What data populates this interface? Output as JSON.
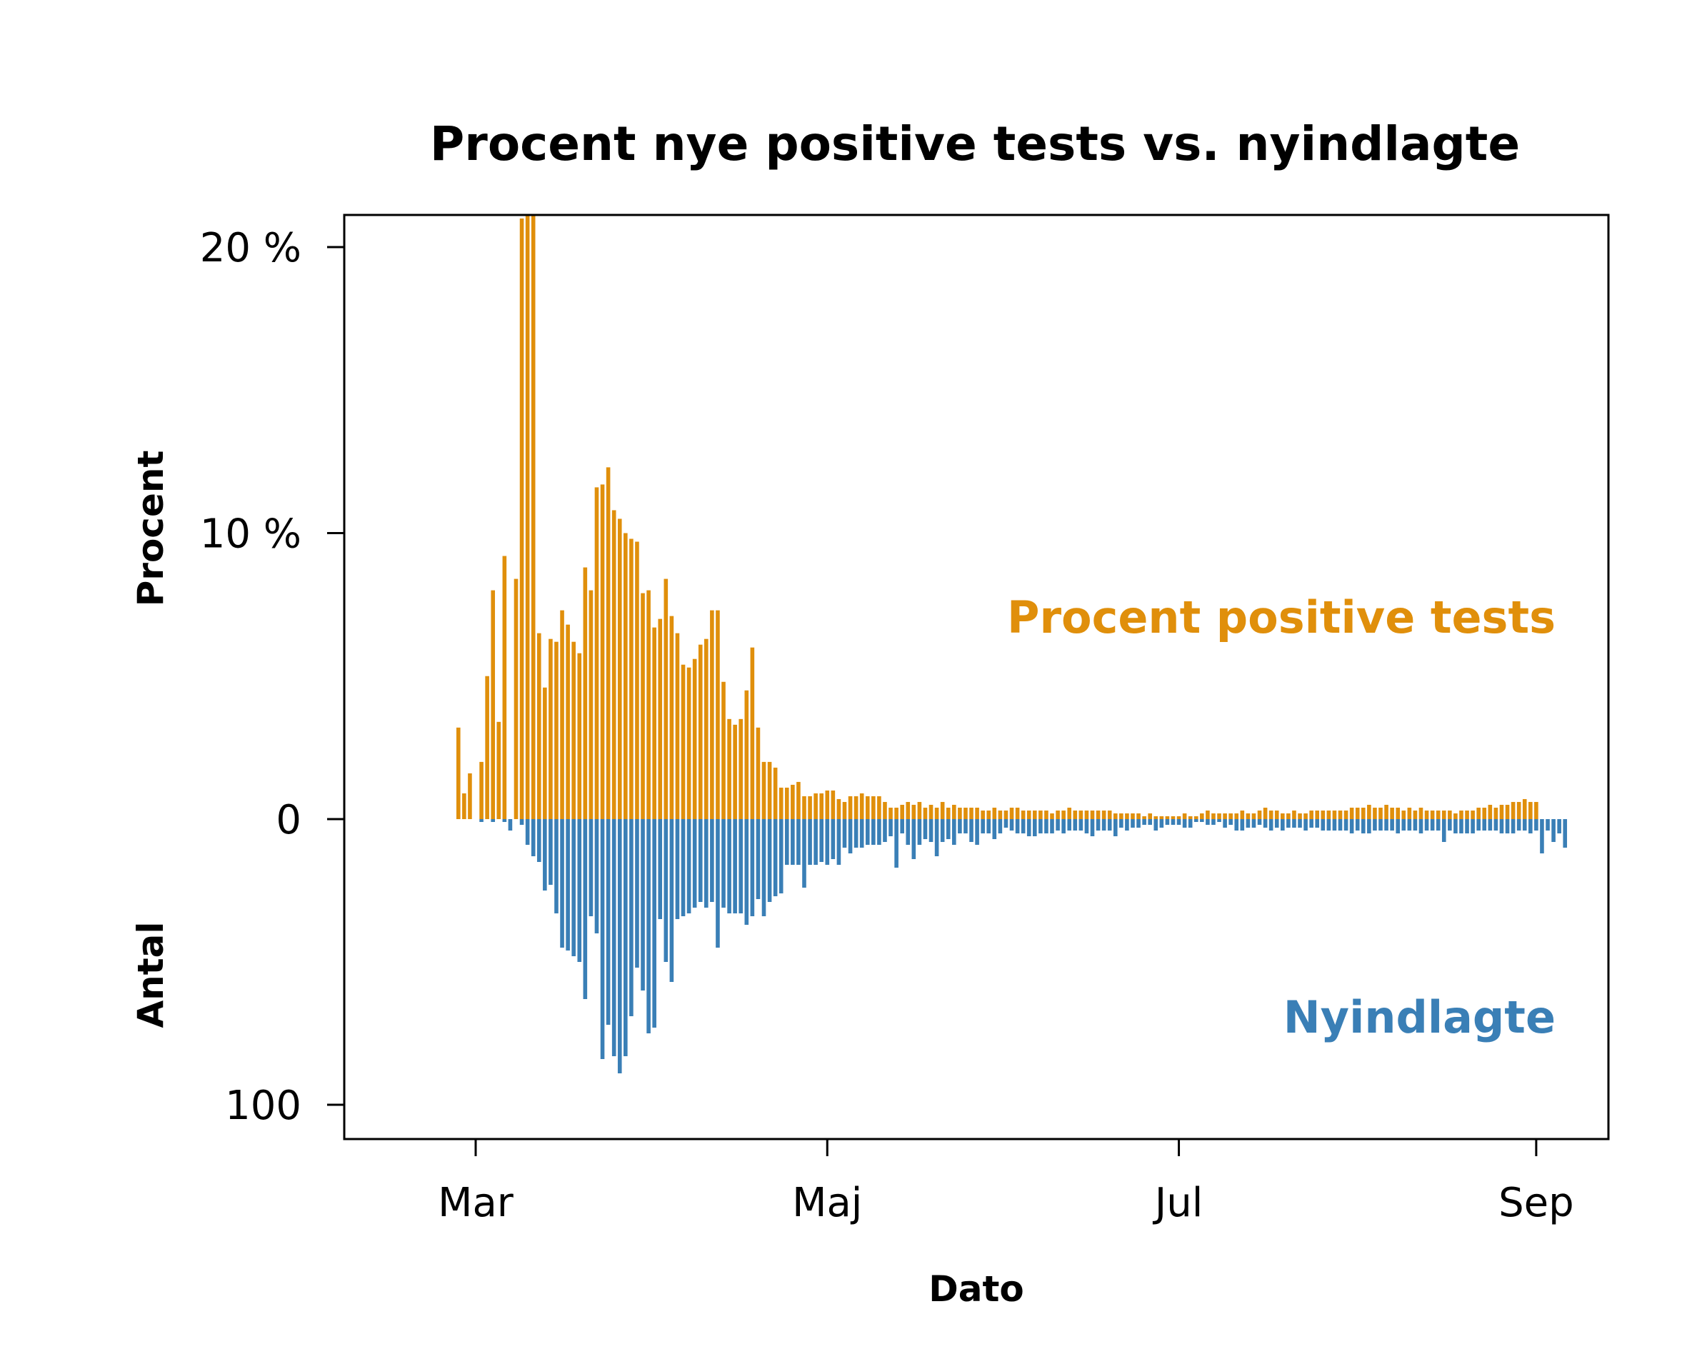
{
  "chart_data": {
    "type": "bar",
    "title": "Procent nye positive tests vs. nyindlagte",
    "xlabel": "Dato",
    "ylabel_upper": "Procent",
    "ylabel_lower": "Antal",
    "x_start_date": "2020-02-27",
    "x_ticks": [
      {
        "label": "Mar",
        "date": "2020-03-01"
      },
      {
        "label": "Maj",
        "date": "2020-05-01"
      },
      {
        "label": "Jul",
        "date": "2020-07-01"
      },
      {
        "label": "Sep",
        "date": "2020-09-01"
      }
    ],
    "y_ticks_upper": [
      {
        "label": "20 %",
        "value": 20
      },
      {
        "label": "10 %",
        "value": 10
      },
      {
        "label": "0",
        "value": 0
      }
    ],
    "y_ticks_lower": [
      {
        "label": "100",
        "value": 100
      }
    ],
    "ylim_upper": [
      0,
      21.2
    ],
    "ylim_lower": [
      0,
      111.5
    ],
    "series": [
      {
        "name": "Procent positive tests",
        "color": "#E08F0B",
        "unit": "percent",
        "values": [
          3.2,
          0.9,
          1.6,
          0,
          2.0,
          5.0,
          8.0,
          3.4,
          9.2,
          0,
          8.4,
          21,
          21.2,
          21.2,
          6.5,
          4.6,
          6.3,
          6.2,
          7.3,
          6.8,
          6.2,
          5.8,
          8.8,
          8.0,
          11.6,
          11.7,
          12.3,
          10.8,
          10.5,
          10.0,
          9.8,
          9.7,
          7.9,
          8.0,
          6.7,
          7.0,
          8.4,
          7.1,
          6.5,
          5.4,
          5.3,
          5.6,
          6.1,
          6.3,
          7.3,
          7.3,
          4.8,
          3.5,
          3.3,
          3.5,
          4.5,
          6.0,
          3.2,
          2.0,
          2.0,
          1.8,
          1.1,
          1.1,
          1.2,
          1.3,
          0.8,
          0.8,
          0.9,
          0.9,
          1.0,
          1.0,
          0.7,
          0.6,
          0.8,
          0.8,
          0.9,
          0.8,
          0.8,
          0.8,
          0.6,
          0.4,
          0.4,
          0.5,
          0.6,
          0.5,
          0.6,
          0.4,
          0.5,
          0.4,
          0.6,
          0.4,
          0.5,
          0.4,
          0.4,
          0.4,
          0.4,
          0.3,
          0.3,
          0.4,
          0.3,
          0.3,
          0.4,
          0.4,
          0.3,
          0.3,
          0.3,
          0.3,
          0.3,
          0.2,
          0.3,
          0.3,
          0.4,
          0.3,
          0.3,
          0.3,
          0.3,
          0.3,
          0.3,
          0.3,
          0.2,
          0.2,
          0.2,
          0.2,
          0.2,
          0.1,
          0.2,
          0.1,
          0.1,
          0.1,
          0.1,
          0.1,
          0.2,
          0.1,
          0.1,
          0.2,
          0.3,
          0.2,
          0.2,
          0.2,
          0.2,
          0.2,
          0.3,
          0.2,
          0.2,
          0.3,
          0.4,
          0.3,
          0.3,
          0.2,
          0.2,
          0.3,
          0.2,
          0.2,
          0.3,
          0.3,
          0.3,
          0.3,
          0.3,
          0.3,
          0.3,
          0.4,
          0.4,
          0.4,
          0.5,
          0.4,
          0.4,
          0.5,
          0.4,
          0.4,
          0.3,
          0.4,
          0.3,
          0.4,
          0.3,
          0.3,
          0.3,
          0.3,
          0.3,
          0.2,
          0.3,
          0.3,
          0.3,
          0.4,
          0.4,
          0.5,
          0.4,
          0.5,
          0.5,
          0.6,
          0.6,
          0.7,
          0.6,
          0.6
        ]
      },
      {
        "name": "Nyindlagte",
        "color": "#3A7FB6",
        "unit": "count",
        "values": [
          0,
          0,
          0,
          0,
          1,
          0,
          1,
          0,
          1,
          4,
          0,
          2,
          9,
          13,
          15,
          25,
          23,
          33,
          45,
          46,
          48,
          50,
          63,
          34,
          40,
          84,
          72,
          83,
          89,
          83,
          69,
          52,
          60,
          75,
          73,
          35,
          50,
          57,
          35,
          34,
          33,
          31,
          29,
          31,
          29,
          45,
          31,
          33,
          33,
          33,
          37,
          34,
          28,
          34,
          29,
          27,
          26,
          16,
          16,
          16,
          24,
          16,
          16,
          15,
          16,
          14,
          16,
          10,
          12,
          10,
          10,
          9,
          9,
          9,
          8,
          6,
          17,
          5,
          9,
          14,
          9,
          7,
          8,
          13,
          8,
          7,
          9,
          5,
          5,
          8,
          9,
          5,
          5,
          7,
          5,
          3,
          4,
          5,
          5,
          6,
          6,
          5,
          5,
          5,
          4,
          5,
          4,
          4,
          4,
          5,
          6,
          4,
          4,
          4,
          6,
          3,
          4,
          3,
          3,
          2,
          2,
          4,
          3,
          2,
          2,
          2,
          3,
          3,
          1,
          1,
          2,
          2,
          1,
          3,
          2,
          4,
          4,
          3,
          3,
          2,
          3,
          4,
          3,
          4,
          3,
          3,
          3,
          4,
          3,
          3,
          4,
          4,
          4,
          4,
          4,
          5,
          4,
          5,
          5,
          4,
          4,
          4,
          4,
          5,
          4,
          4,
          4,
          5,
          4,
          4,
          4,
          8,
          4,
          5,
          5,
          5,
          5,
          4,
          4,
          4,
          4,
          5,
          5,
          5,
          4,
          4,
          5,
          4,
          12,
          4,
          8,
          5,
          10
        ]
      }
    ],
    "grid": false,
    "legend": "inline labels on the right side"
  }
}
